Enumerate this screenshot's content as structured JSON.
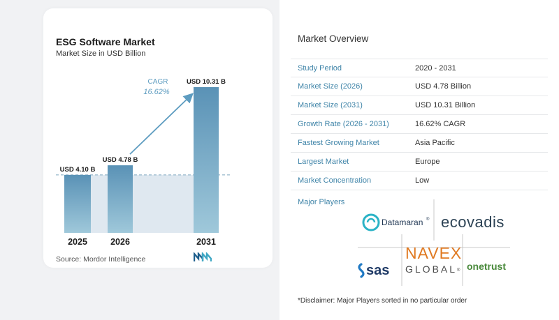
{
  "colors": {
    "bar_light": "#9fc8da",
    "bar_dark": "#5a92b6",
    "band": "#dfe8f0",
    "label_blue": "#3f84a8",
    "cagr_blue": "#5d9cc0"
  },
  "chart_header": {
    "title": "ESG Software Market",
    "subtitle": "Market Size in USD Billion"
  },
  "chart_data": {
    "type": "bar",
    "title": "ESG Software Market",
    "subtitle": "Market Size in USD Billion",
    "categories": [
      "2025",
      "2026",
      "2031"
    ],
    "values": [
      4.1,
      4.78,
      10.31
    ],
    "value_labels": [
      "USD 4.10 B",
      "USD 4.78 B",
      "USD 10.31 B"
    ],
    "ylim": [
      0,
      11
    ],
    "grid": false,
    "reference_line_value": 4.1,
    "annotation": {
      "label": "CAGR",
      "value": "16.62%"
    }
  },
  "source": "Source:  Mordor Intelligence",
  "overview": {
    "title": "Market Overview",
    "rows": [
      {
        "label": "Study Period",
        "value": "2020 - 2031"
      },
      {
        "label": "Market Size (2026)",
        "value": "USD 4.78 Billion"
      },
      {
        "label": "Market Size (2031)",
        "value": "USD 10.31 Billion"
      },
      {
        "label": "Growth Rate (2026 - 2031)",
        "value": "16.62% CAGR"
      },
      {
        "label": "Fastest Growing Market",
        "value": "Asia Pacific"
      },
      {
        "label": "Largest Market",
        "value": "Europe"
      },
      {
        "label": "Market Concentration",
        "value": "Low"
      }
    ]
  },
  "players": {
    "title": "Major Players",
    "logos": {
      "datamaran": "Datamaran",
      "datamaran_mark": "®",
      "ecovadis": "ecovadis",
      "sas": "sas",
      "navex_top": "NAVEX",
      "navex_bottom": "GLOBAL",
      "navex_mark": "®",
      "onetrust": "onetrust"
    }
  },
  "disclaimer": "*Disclaimer: Major Players sorted in no particular order"
}
